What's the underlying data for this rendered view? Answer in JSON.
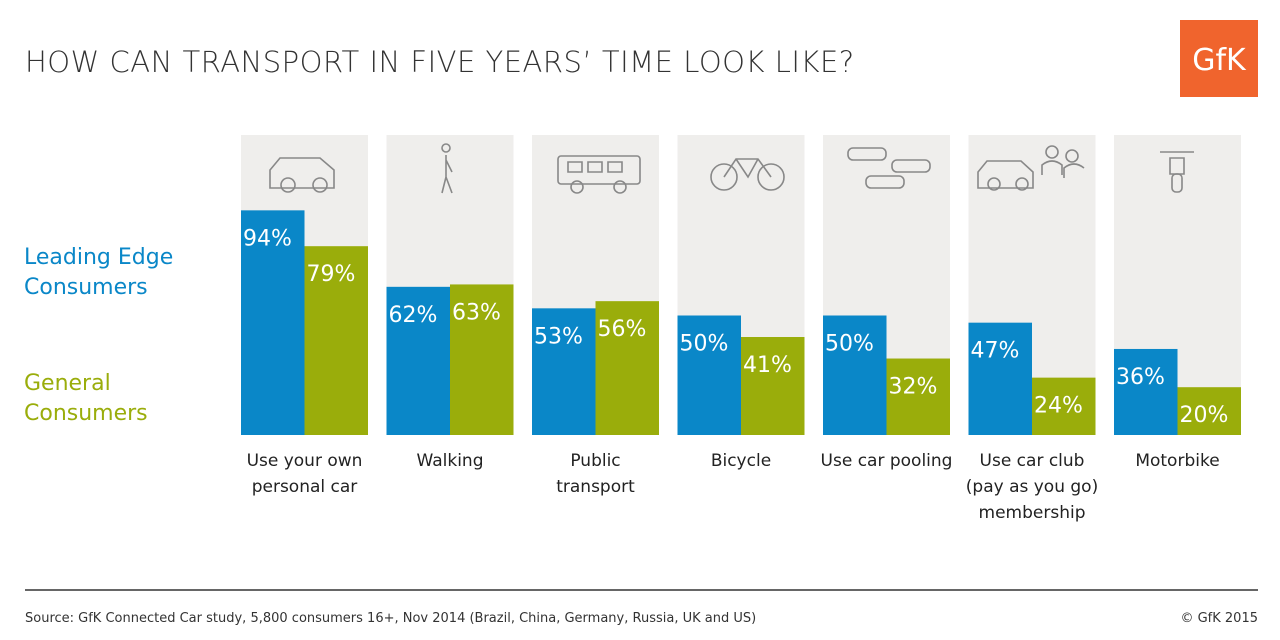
{
  "chart_data": {
    "type": "bar",
    "title": "HOW CAN TRANSPORT IN FIVE YEARS’ TIME LOOK LIKE?",
    "categories": [
      "Use your own\npersonal car",
      "Walking",
      "Public\ntransport",
      "Bicycle",
      "Use car pooling",
      "Use car club\n(pay as you go)\nmembership",
      "Motorbike"
    ],
    "series": [
      {
        "name": "Leading Edge Consumers",
        "color": "#0a87c8",
        "values": [
          94,
          62,
          53,
          50,
          50,
          47,
          36
        ],
        "value_labels": [
          "94%",
          "62%",
          "53%",
          "50%",
          "50%",
          "47%",
          "36%"
        ]
      },
      {
        "name": "General Consumers",
        "color": "#9aad0b",
        "values": [
          79,
          63,
          56,
          41,
          32,
          24,
          20
        ],
        "value_labels": [
          "79%",
          "63%",
          "56%",
          "41%",
          "32%",
          "24%",
          "20%"
        ]
      }
    ],
    "ylim": [
      0,
      100
    ],
    "source": "Source: GfK Connected Car study, 5,800 consumers 16+, Nov 2014 (Brazil, China, Germany, Russia, UK and US)",
    "copyright": "© GfK 2015",
    "logo": "GfK"
  }
}
